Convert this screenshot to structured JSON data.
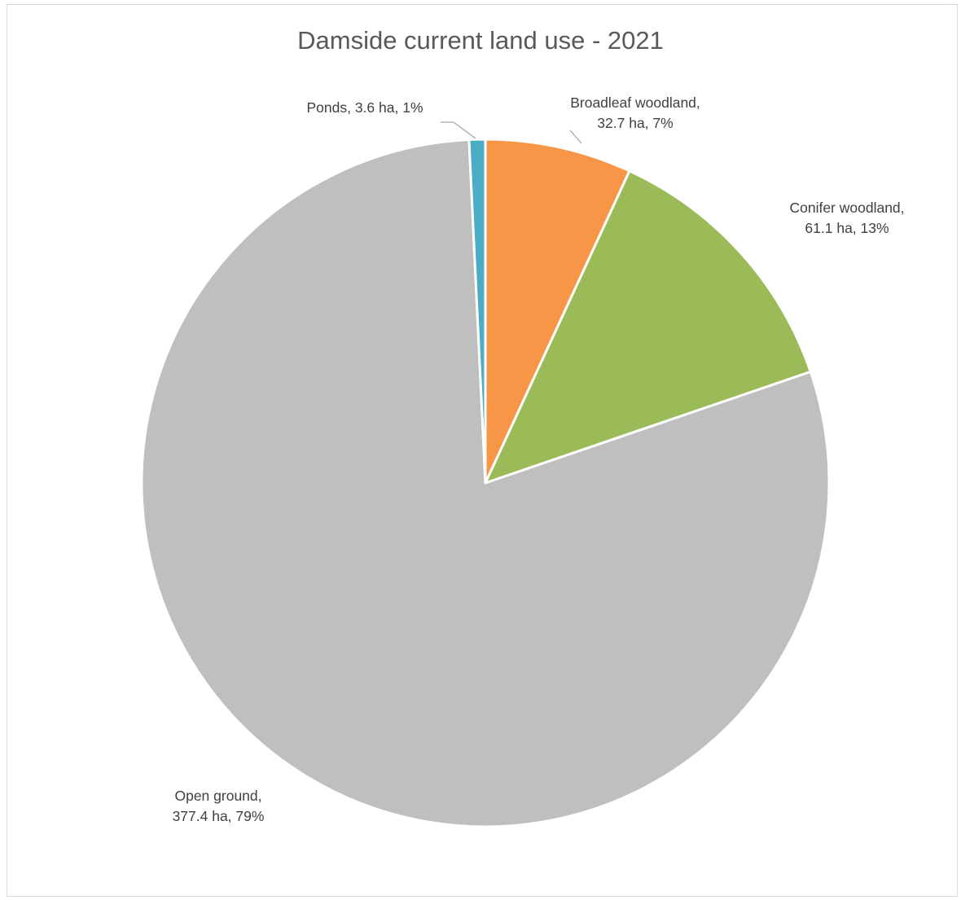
{
  "chart_data": {
    "type": "pie",
    "title": "Damside current land use - 2021",
    "unit": "ha",
    "slices": [
      {
        "name": "Broadleaf woodland",
        "value": 32.7,
        "percent": 7,
        "color": "#F79646",
        "label_lines": [
          "Broadleaf woodland,",
          "32.7 ha, 7%"
        ]
      },
      {
        "name": "Conifer woodland",
        "value": 61.1,
        "percent": 13,
        "color": "#9BBB59",
        "label_lines": [
          "Conifer woodland,",
          "61.1 ha, 13%"
        ]
      },
      {
        "name": "Open ground",
        "value": 377.4,
        "percent": 79,
        "color": "#BFBFBF",
        "label_lines": [
          "Open ground,",
          "377.4 ha, 79%"
        ]
      },
      {
        "name": "Ponds",
        "value": 3.6,
        "percent": 1,
        "color": "#4BACC6",
        "label_lines": [
          "Ponds, 3.6 ha, 1%"
        ]
      }
    ],
    "start_angle_deg": 0,
    "direction": "clockwise",
    "leader_line_color": "#A6A6A6"
  }
}
